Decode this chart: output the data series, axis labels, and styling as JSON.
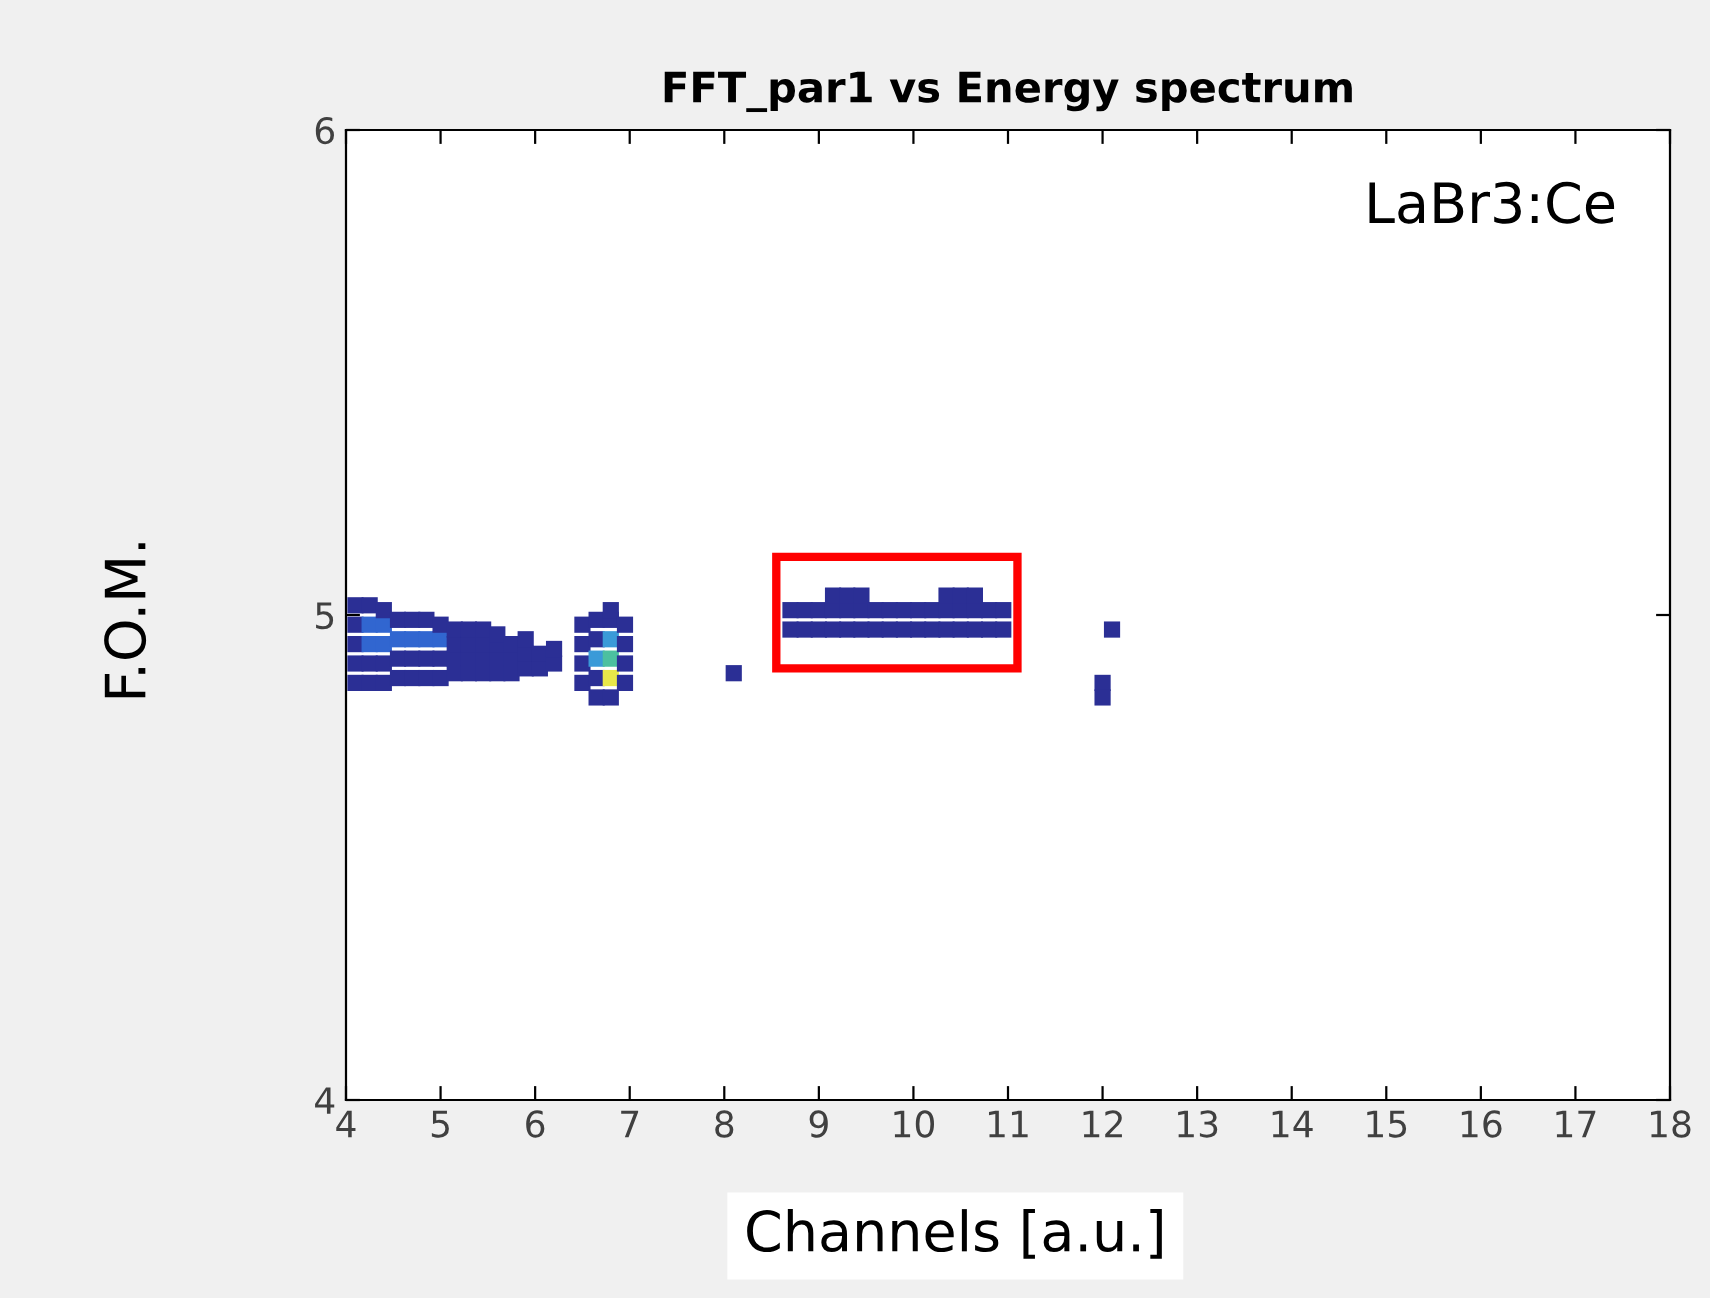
{
  "chart_data": {
    "type": "scatter",
    "title": "FFT_par1 vs Energy spectrum",
    "xlabel": "Channels [a.u.]",
    "ylabel": "F.O.M.",
    "annotations": [
      "LaBr3:Ce"
    ],
    "xlim": [
      4,
      18
    ],
    "ylim": [
      4,
      6
    ],
    "xticks": [
      4,
      5,
      6,
      7,
      8,
      9,
      10,
      11,
      12,
      13,
      14,
      15,
      16,
      17,
      18
    ],
    "yticks": [
      4,
      5,
      6
    ],
    "grid": false,
    "legend": false,
    "marker": "square",
    "series": [
      {
        "colors": [
          "#2b2f95",
          "#2b2f95",
          "#2b2f95",
          "#2b2f95",
          "#2b2f95",
          "#2b2f95",
          "#2b2f95",
          "#3166d0",
          "#3166d0",
          "#2b2f95",
          "#2b2f95",
          "#2b2f95",
          "#3166d0",
          "#3166d0",
          "#2b2f95",
          "#2b2f95",
          "#2b2f95",
          "#3166d0",
          "#2b2f95",
          "#2b2f95",
          "#2b2f95",
          "#3166d0",
          "#2b2f95",
          "#2b2f95",
          "#2b2f95",
          "#3166d0",
          "#2b2f95",
          "#2b2f95",
          "#2b2f95",
          "#3166d0",
          "#2b2f95",
          "#2b2f95",
          "#2b2f95",
          "#2b2f95",
          "#2b2f95",
          "#2b2f95",
          "#2b2f95",
          "#2b2f95",
          "#2b2f95",
          "#2b2f95",
          "#2b2f95",
          "#2b2f95",
          "#2b2f95",
          "#2b2f95",
          "#2b2f95",
          "#2b2f95",
          "#2b2f95",
          "#2b2f95",
          "#2b2f95",
          "#2b2f95",
          "#2b2f95",
          "#2b2f95",
          "#2b2f95",
          "#2b2f95",
          "#2b2f95",
          "#2b2f95",
          "#2b2f95"
        ],
        "x": [
          4.1,
          4.1,
          4.1,
          4.1,
          4.1,
          4.25,
          4.25,
          4.25,
          4.25,
          4.25,
          4.4,
          4.4,
          4.4,
          4.4,
          4.4,
          4.55,
          4.55,
          4.55,
          4.55,
          4.7,
          4.7,
          4.7,
          4.7,
          4.85,
          4.85,
          4.85,
          4.85,
          5.0,
          5.0,
          5.0,
          5.0,
          5.15,
          5.15,
          5.15,
          5.15,
          5.3,
          5.3,
          5.3,
          5.3,
          5.45,
          5.45,
          5.45,
          5.45,
          5.6,
          5.6,
          5.6,
          5.6,
          5.75,
          5.75,
          5.75,
          5.9,
          5.9,
          5.9,
          6.05,
          6.05,
          6.2,
          6.2
        ],
        "values": [
          4.86,
          4.9,
          4.94,
          4.98,
          5.02,
          4.86,
          4.9,
          4.94,
          4.98,
          5.02,
          4.86,
          4.9,
          4.94,
          4.98,
          5.01,
          4.87,
          4.91,
          4.95,
          4.99,
          4.87,
          4.91,
          4.95,
          4.99,
          4.87,
          4.91,
          4.95,
          4.99,
          4.87,
          4.91,
          4.95,
          4.98,
          4.88,
          4.91,
          4.94,
          4.97,
          4.88,
          4.91,
          4.94,
          4.97,
          4.88,
          4.91,
          4.94,
          4.97,
          4.88,
          4.91,
          4.94,
          4.96,
          4.88,
          4.91,
          4.94,
          4.89,
          4.92,
          4.95,
          4.89,
          4.92,
          4.9,
          4.93
        ]
      },
      {
        "colors": [
          "#2b2f95",
          "#2b2f95",
          "#2b2f95",
          "#2b2f95",
          "#2b2f95",
          "#2b2f95",
          "#3a9ad8",
          "#2b2f95",
          "#2b2f95",
          "#2b2f95",
          "#e8e84a",
          "#4cc0a0",
          "#3a9ad8",
          "#2b2f95",
          "#2b2f95",
          "#2b2f95",
          "#2b2f95",
          "#2b2f95",
          "#2b2f95"
        ],
        "x": [
          6.5,
          6.5,
          6.5,
          6.5,
          6.65,
          6.65,
          6.65,
          6.65,
          6.65,
          6.8,
          6.8,
          6.8,
          6.8,
          6.8,
          6.8,
          6.95,
          6.95,
          6.95,
          6.95
        ],
        "values": [
          4.86,
          4.9,
          4.94,
          4.98,
          4.83,
          4.87,
          4.91,
          4.95,
          4.99,
          4.83,
          4.87,
          4.91,
          4.95,
          4.99,
          5.01,
          4.86,
          4.9,
          4.94,
          4.98
        ]
      },
      {
        "color": "#2b2f95",
        "x": [
          8.7,
          8.7,
          8.85,
          8.85,
          9.0,
          9.0,
          9.15,
          9.15,
          9.15,
          9.3,
          9.3,
          9.3,
          9.45,
          9.45,
          9.45,
          9.6,
          9.6,
          9.75,
          9.75,
          9.9,
          9.9,
          10.05,
          10.05,
          10.2,
          10.2,
          10.35,
          10.35,
          10.35,
          10.5,
          10.5,
          10.5,
          10.65,
          10.65,
          10.65,
          10.8,
          10.8,
          10.95,
          10.95
        ],
        "values": [
          4.97,
          5.01,
          4.97,
          5.01,
          4.97,
          5.01,
          4.97,
          5.01,
          5.04,
          4.97,
          5.01,
          5.04,
          4.97,
          5.01,
          5.04,
          4.97,
          5.01,
          4.97,
          5.01,
          4.97,
          5.01,
          4.97,
          5.01,
          4.97,
          5.01,
          4.97,
          5.01,
          5.04,
          4.97,
          5.01,
          5.04,
          4.97,
          5.01,
          5.04,
          4.97,
          5.01,
          4.97,
          5.01
        ]
      },
      {
        "color": "#2b2f95",
        "x": [
          8.1,
          12.0,
          12.0,
          12.1
        ],
        "values": [
          4.88,
          4.86,
          4.83,
          4.97
        ]
      }
    ]
  }
}
